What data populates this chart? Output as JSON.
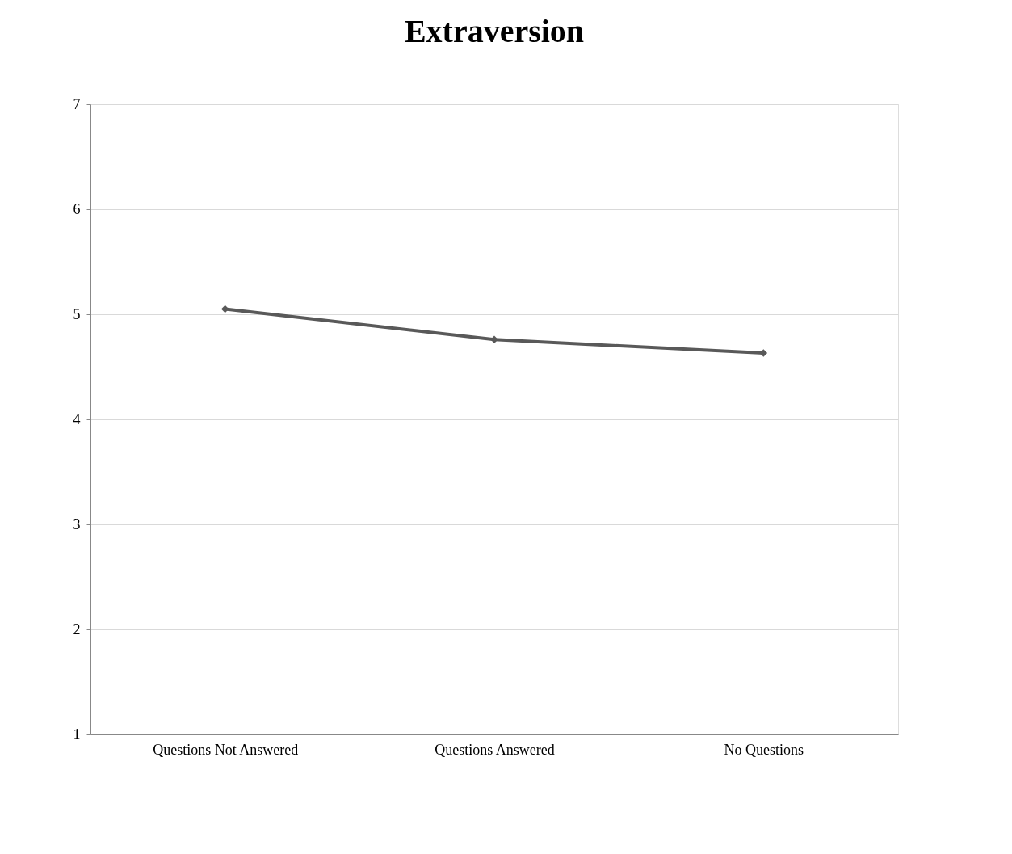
{
  "chart_data": {
    "type": "line",
    "title": "Extraversion",
    "categories": [
      "Questions Not Answered",
      "Questions Answered",
      "No Questions"
    ],
    "series": [
      {
        "color": "#595959",
        "values": [
          5.05,
          4.76,
          4.63
        ]
      }
    ],
    "ylim": [
      1,
      7
    ],
    "yticks": [
      1,
      2,
      3,
      4,
      5,
      6,
      7
    ],
    "grid": "y",
    "marker": "diamond",
    "line_style": "solid"
  }
}
